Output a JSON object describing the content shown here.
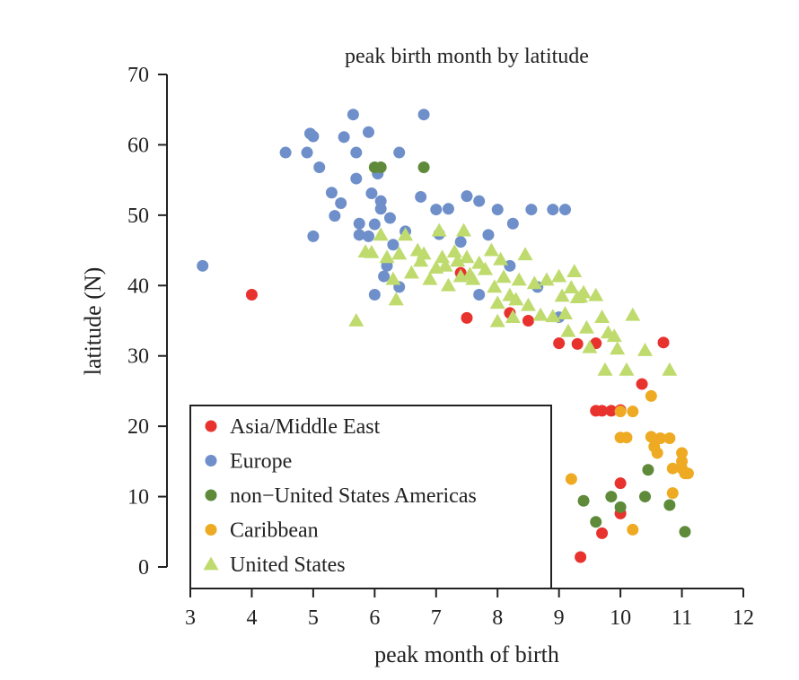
{
  "chart_data": {
    "type": "scatter",
    "title": "peak birth month by latitude",
    "xlabel": "peak month of birth",
    "ylabel": "latitude (N)",
    "xlim": [
      3,
      12
    ],
    "ylim": [
      0,
      70
    ],
    "xticks": [
      3,
      4,
      5,
      6,
      7,
      8,
      9,
      10,
      11,
      12
    ],
    "yticks": [
      0,
      10,
      20,
      30,
      40,
      50,
      60,
      70
    ],
    "grid": false,
    "legend_position": "bottom-left",
    "series": [
      {
        "name": "Asia/Middle East",
        "color": "#e8322e",
        "marker": "circle",
        "points": [
          [
            4.0,
            38.7
          ],
          [
            7.4,
            41.8
          ],
          [
            7.5,
            35.4
          ],
          [
            8.2,
            36.1
          ],
          [
            8.5,
            35.0
          ],
          [
            9.0,
            31.8
          ],
          [
            9.3,
            31.7
          ],
          [
            9.6,
            31.8
          ],
          [
            10.7,
            31.9
          ],
          [
            10.35,
            26.0
          ],
          [
            9.6,
            22.2
          ],
          [
            9.7,
            22.2
          ],
          [
            9.85,
            22.2
          ],
          [
            10.0,
            22.3
          ],
          [
            10.0,
            11.9
          ],
          [
            10.0,
            7.6
          ],
          [
            9.7,
            4.8
          ],
          [
            9.35,
            1.4
          ]
        ]
      },
      {
        "name": "Europe",
        "color": "#6e8fc9",
        "marker": "circle",
        "points": [
          [
            3.2,
            42.8
          ],
          [
            4.55,
            58.9
          ],
          [
            4.9,
            58.9
          ],
          [
            4.95,
            61.6
          ],
          [
            5.0,
            61.2
          ],
          [
            5.1,
            56.8
          ],
          [
            5.3,
            53.2
          ],
          [
            5.35,
            49.9
          ],
          [
            5.45,
            51.7
          ],
          [
            5.5,
            61.1
          ],
          [
            5.65,
            64.3
          ],
          [
            5.7,
            58.9
          ],
          [
            5.7,
            55.2
          ],
          [
            5.75,
            48.8
          ],
          [
            5.75,
            47.2
          ],
          [
            5.9,
            47.0
          ],
          [
            5.9,
            61.8
          ],
          [
            5.95,
            53.1
          ],
          [
            6.0,
            48.7
          ],
          [
            6.0,
            38.7
          ],
          [
            6.05,
            55.9
          ],
          [
            6.1,
            52.0
          ],
          [
            6.1,
            50.9
          ],
          [
            6.15,
            41.3
          ],
          [
            6.2,
            42.8
          ],
          [
            6.25,
            49.6
          ],
          [
            6.3,
            45.8
          ],
          [
            6.4,
            39.8
          ],
          [
            6.4,
            58.9
          ],
          [
            6.5,
            47.7
          ],
          [
            6.75,
            52.6
          ],
          [
            6.8,
            64.3
          ],
          [
            7.0,
            50.8
          ],
          [
            7.05,
            47.3
          ],
          [
            7.2,
            50.9
          ],
          [
            7.4,
            46.2
          ],
          [
            7.5,
            52.7
          ],
          [
            7.7,
            52.0
          ],
          [
            7.7,
            38.7
          ],
          [
            7.85,
            47.2
          ],
          [
            8.0,
            50.8
          ],
          [
            8.2,
            42.8
          ],
          [
            8.25,
            48.8
          ],
          [
            8.55,
            50.8
          ],
          [
            8.65,
            39.8
          ],
          [
            8.9,
            50.8
          ],
          [
            9.0,
            35.5
          ],
          [
            9.1,
            50.8
          ],
          [
            5.0,
            47.0
          ]
        ]
      },
      {
        "name": "non−United States Americas",
        "color": "#5e8a3a",
        "marker": "circle",
        "points": [
          [
            6.0,
            56.8
          ],
          [
            6.1,
            56.8
          ],
          [
            6.8,
            56.8
          ],
          [
            9.4,
            9.4
          ],
          [
            9.6,
            6.4
          ],
          [
            9.85,
            10.0
          ],
          [
            10.0,
            8.5
          ],
          [
            10.45,
            13.8
          ],
          [
            10.4,
            10.0
          ],
          [
            10.8,
            8.8
          ],
          [
            11.05,
            5.0
          ]
        ]
      },
      {
        "name": "Caribbean",
        "color": "#eeaa22",
        "marker": "circle",
        "points": [
          [
            9.2,
            12.5
          ],
          [
            10.0,
            22.1
          ],
          [
            10.0,
            18.4
          ],
          [
            10.1,
            18.4
          ],
          [
            10.2,
            22.1
          ],
          [
            10.2,
            5.3
          ],
          [
            10.5,
            24.3
          ],
          [
            10.5,
            18.5
          ],
          [
            10.55,
            17.1
          ],
          [
            10.6,
            16.2
          ],
          [
            10.65,
            18.3
          ],
          [
            10.8,
            18.3
          ],
          [
            10.85,
            14.0
          ],
          [
            10.85,
            10.5
          ],
          [
            11.0,
            16.2
          ],
          [
            11.0,
            14.0
          ],
          [
            11.05,
            13.3
          ],
          [
            11.1,
            13.3
          ],
          [
            11.0,
            15.0
          ]
        ]
      },
      {
        "name": "United States",
        "color": "#bfdb6e",
        "marker": "triangle",
        "points": [
          [
            5.7,
            35.0
          ],
          [
            5.85,
            44.8
          ],
          [
            5.95,
            44.7
          ],
          [
            6.1,
            47.2
          ],
          [
            6.2,
            44.0
          ],
          [
            6.3,
            40.9
          ],
          [
            6.35,
            38.0
          ],
          [
            6.4,
            44.5
          ],
          [
            6.5,
            47.2
          ],
          [
            6.6,
            41.8
          ],
          [
            6.7,
            45.0
          ],
          [
            6.75,
            43.5
          ],
          [
            6.8,
            44.5
          ],
          [
            6.9,
            40.9
          ],
          [
            7.0,
            42.5
          ],
          [
            7.05,
            47.8
          ],
          [
            7.1,
            44.0
          ],
          [
            7.15,
            42.8
          ],
          [
            7.2,
            40.0
          ],
          [
            7.3,
            44.8
          ],
          [
            7.35,
            43.5
          ],
          [
            7.4,
            41.3
          ],
          [
            7.45,
            47.8
          ],
          [
            7.5,
            44.0
          ],
          [
            7.55,
            41.6
          ],
          [
            7.6,
            40.9
          ],
          [
            7.7,
            43.2
          ],
          [
            7.8,
            42.3
          ],
          [
            7.9,
            45.0
          ],
          [
            7.95,
            39.8
          ],
          [
            8.0,
            37.5
          ],
          [
            8.0,
            34.9
          ],
          [
            8.1,
            41.2
          ],
          [
            8.2,
            38.6
          ],
          [
            8.25,
            35.5
          ],
          [
            8.3,
            38.0
          ],
          [
            8.35,
            40.8
          ],
          [
            8.45,
            44.4
          ],
          [
            8.5,
            37.2
          ],
          [
            8.6,
            40.3
          ],
          [
            8.7,
            35.8
          ],
          [
            8.8,
            40.8
          ],
          [
            8.9,
            35.6
          ],
          [
            9.0,
            41.3
          ],
          [
            9.05,
            38.5
          ],
          [
            9.1,
            36.0
          ],
          [
            9.15,
            33.5
          ],
          [
            9.2,
            39.7
          ],
          [
            9.25,
            42.0
          ],
          [
            9.3,
            38.3
          ],
          [
            9.4,
            39.0
          ],
          [
            9.45,
            34.0
          ],
          [
            9.5,
            31.2
          ],
          [
            9.6,
            38.6
          ],
          [
            9.7,
            35.5
          ],
          [
            9.75,
            28.0
          ],
          [
            9.8,
            33.3
          ],
          [
            9.9,
            32.8
          ],
          [
            9.95,
            31.0
          ],
          [
            10.1,
            28.0
          ],
          [
            10.2,
            35.8
          ],
          [
            10.4,
            30.8
          ],
          [
            10.8,
            28.0
          ],
          [
            8.05,
            43.7
          ],
          [
            9.35,
            38.4
          ]
        ]
      }
    ]
  }
}
